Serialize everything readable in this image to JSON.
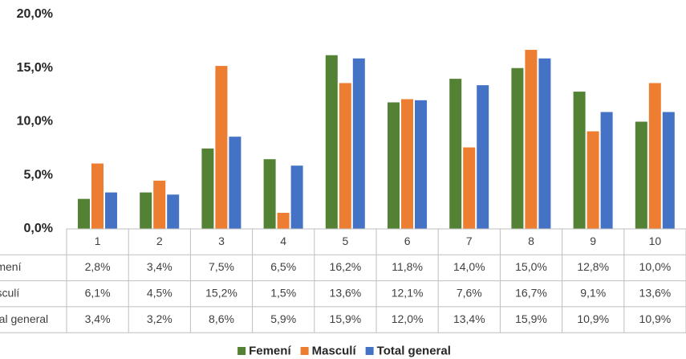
{
  "chart_data": {
    "type": "bar",
    "categories": [
      "1",
      "2",
      "3",
      "4",
      "5",
      "6",
      "7",
      "8",
      "9",
      "10"
    ],
    "series": [
      {
        "name": "Femení",
        "color": "#548235",
        "values": [
          2.8,
          3.4,
          7.5,
          6.5,
          16.2,
          11.8,
          14.0,
          15.0,
          12.8,
          10.0
        ],
        "value_labels": [
          "2,8%",
          "3,4%",
          "7,5%",
          "6,5%",
          "16,2%",
          "11,8%",
          "14,0%",
          "15,0%",
          "12,8%",
          "10,0%"
        ]
      },
      {
        "name": "Masculí",
        "color": "#ed7d31",
        "values": [
          6.1,
          4.5,
          15.2,
          1.5,
          13.6,
          12.1,
          7.6,
          16.7,
          9.1,
          13.6
        ],
        "value_labels": [
          "6,1%",
          "4,5%",
          "15,2%",
          "1,5%",
          "13,6%",
          "12,1%",
          "7,6%",
          "16,7%",
          "9,1%",
          "13,6%"
        ]
      },
      {
        "name": "Total general",
        "color": "#4472c4",
        "values": [
          3.4,
          3.2,
          8.6,
          5.9,
          15.9,
          12.0,
          13.4,
          15.9,
          10.9,
          10.9
        ],
        "value_labels": [
          "3,4%",
          "3,2%",
          "8,6%",
          "5,9%",
          "15,9%",
          "12,0%",
          "13,4%",
          "15,9%",
          "10,9%",
          "10,9%"
        ]
      }
    ],
    "ylim": [
      0,
      20
    ],
    "yticks": [
      {
        "value": 0,
        "label": "0,0%"
      },
      {
        "value": 5,
        "label": "5,0%"
      },
      {
        "value": 10,
        "label": "10,0%"
      },
      {
        "value": 15,
        "label": "15,0%"
      },
      {
        "value": 20,
        "label": "20,0%"
      }
    ],
    "grid": false,
    "legend": "bottom"
  }
}
